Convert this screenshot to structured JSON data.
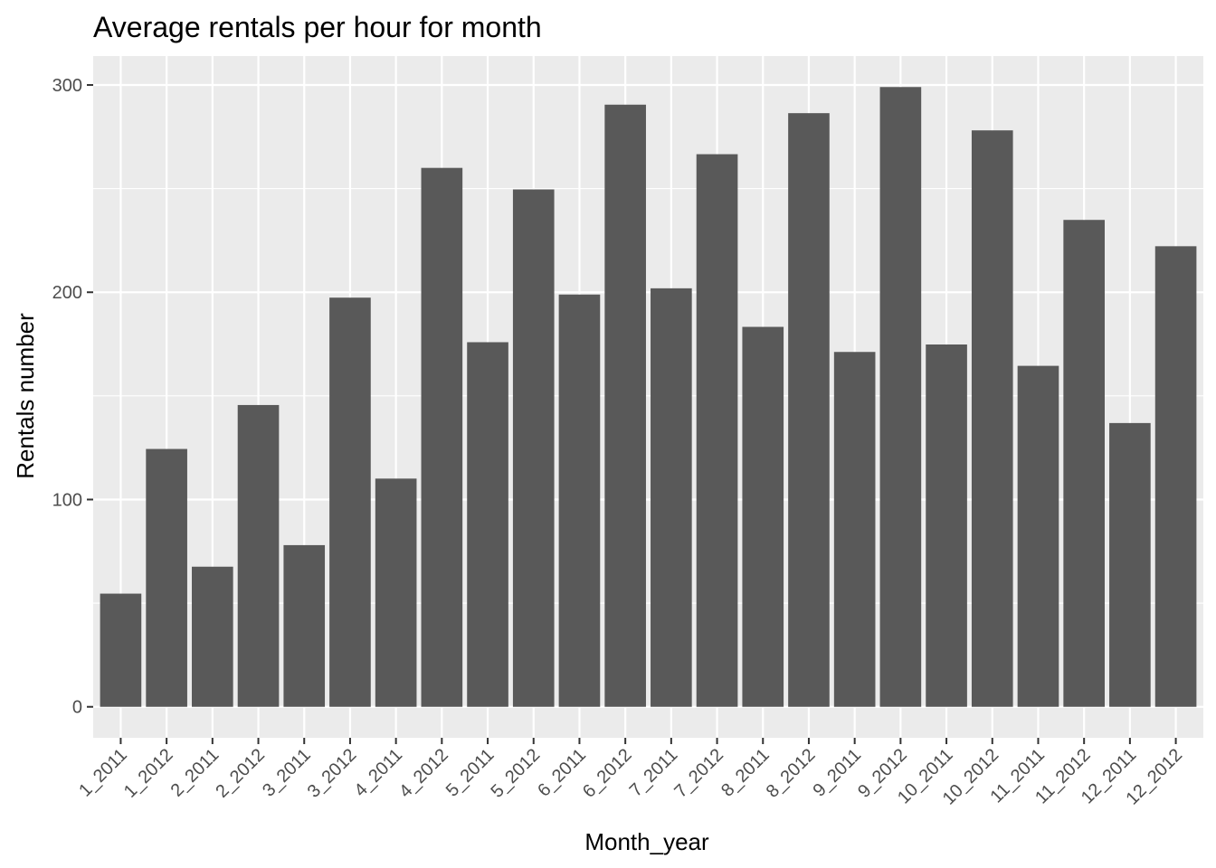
{
  "chart_data": {
    "type": "bar",
    "title": "Average rentals per hour for month",
    "xlabel": "Month_year",
    "ylabel": "Rentals number",
    "categories": [
      "1_2011",
      "1_2012",
      "2_2011",
      "2_2012",
      "3_2011",
      "3_2012",
      "4_2011",
      "4_2012",
      "5_2011",
      "5_2012",
      "6_2011",
      "6_2012",
      "7_2011",
      "7_2012",
      "8_2011",
      "8_2012",
      "9_2011",
      "9_2012",
      "10_2011",
      "10_2012",
      "11_2011",
      "11_2012",
      "12_2011",
      "12_2012"
    ],
    "values": [
      54.6,
      124.4,
      67.6,
      145.6,
      78.0,
      197.4,
      110.1,
      260.0,
      175.9,
      249.6,
      198.9,
      290.5,
      201.9,
      266.6,
      183.3,
      286.4,
      171.2,
      299.0,
      174.8,
      278.1,
      164.5,
      234.9,
      136.9,
      222.2
    ],
    "ylim": [
      -14.95,
      313.95
    ],
    "yticks": [
      0,
      100,
      200,
      300
    ],
    "ytick_labels": [
      "0",
      "100",
      "200",
      "300"
    ],
    "bar_color": "#595959",
    "panel_color": "#ebebeb",
    "grid": true,
    "legend": "none"
  }
}
